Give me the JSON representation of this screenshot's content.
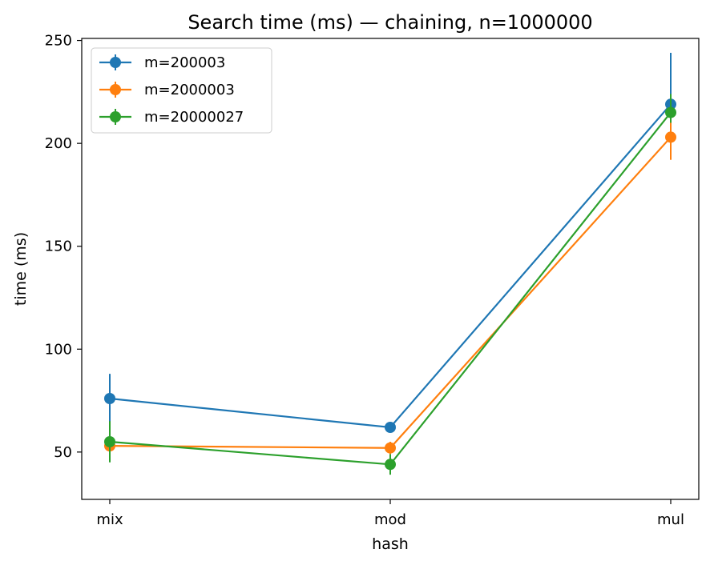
{
  "chart_data": {
    "type": "line",
    "title": "Search time (ms) — chaining, n=1000000",
    "xlabel": "hash",
    "ylabel": "time (ms)",
    "categories": [
      "mix",
      "mod",
      "mul"
    ],
    "yticks": [
      50,
      100,
      150,
      200,
      250
    ],
    "ylim": [
      27,
      251
    ],
    "grid": false,
    "legend": "top-left",
    "error_bars": true,
    "series": [
      {
        "name": "m=200003",
        "color": "#1f77b4",
        "values": [
          76,
          62,
          219
        ],
        "err_low": [
          12,
          2,
          4
        ],
        "err_high": [
          12,
          2,
          25
        ]
      },
      {
        "name": "m=2000003",
        "color": "#ff7f0e",
        "values": [
          53,
          52,
          203
        ],
        "err_low": [
          3,
          3,
          11
        ],
        "err_high": [
          3,
          3,
          11
        ]
      },
      {
        "name": "m=20000027",
        "color": "#2ca02c",
        "values": [
          55,
          44,
          215
        ],
        "err_low": [
          10,
          5,
          5
        ],
        "err_high": [
          10,
          5,
          9
        ]
      }
    ]
  }
}
